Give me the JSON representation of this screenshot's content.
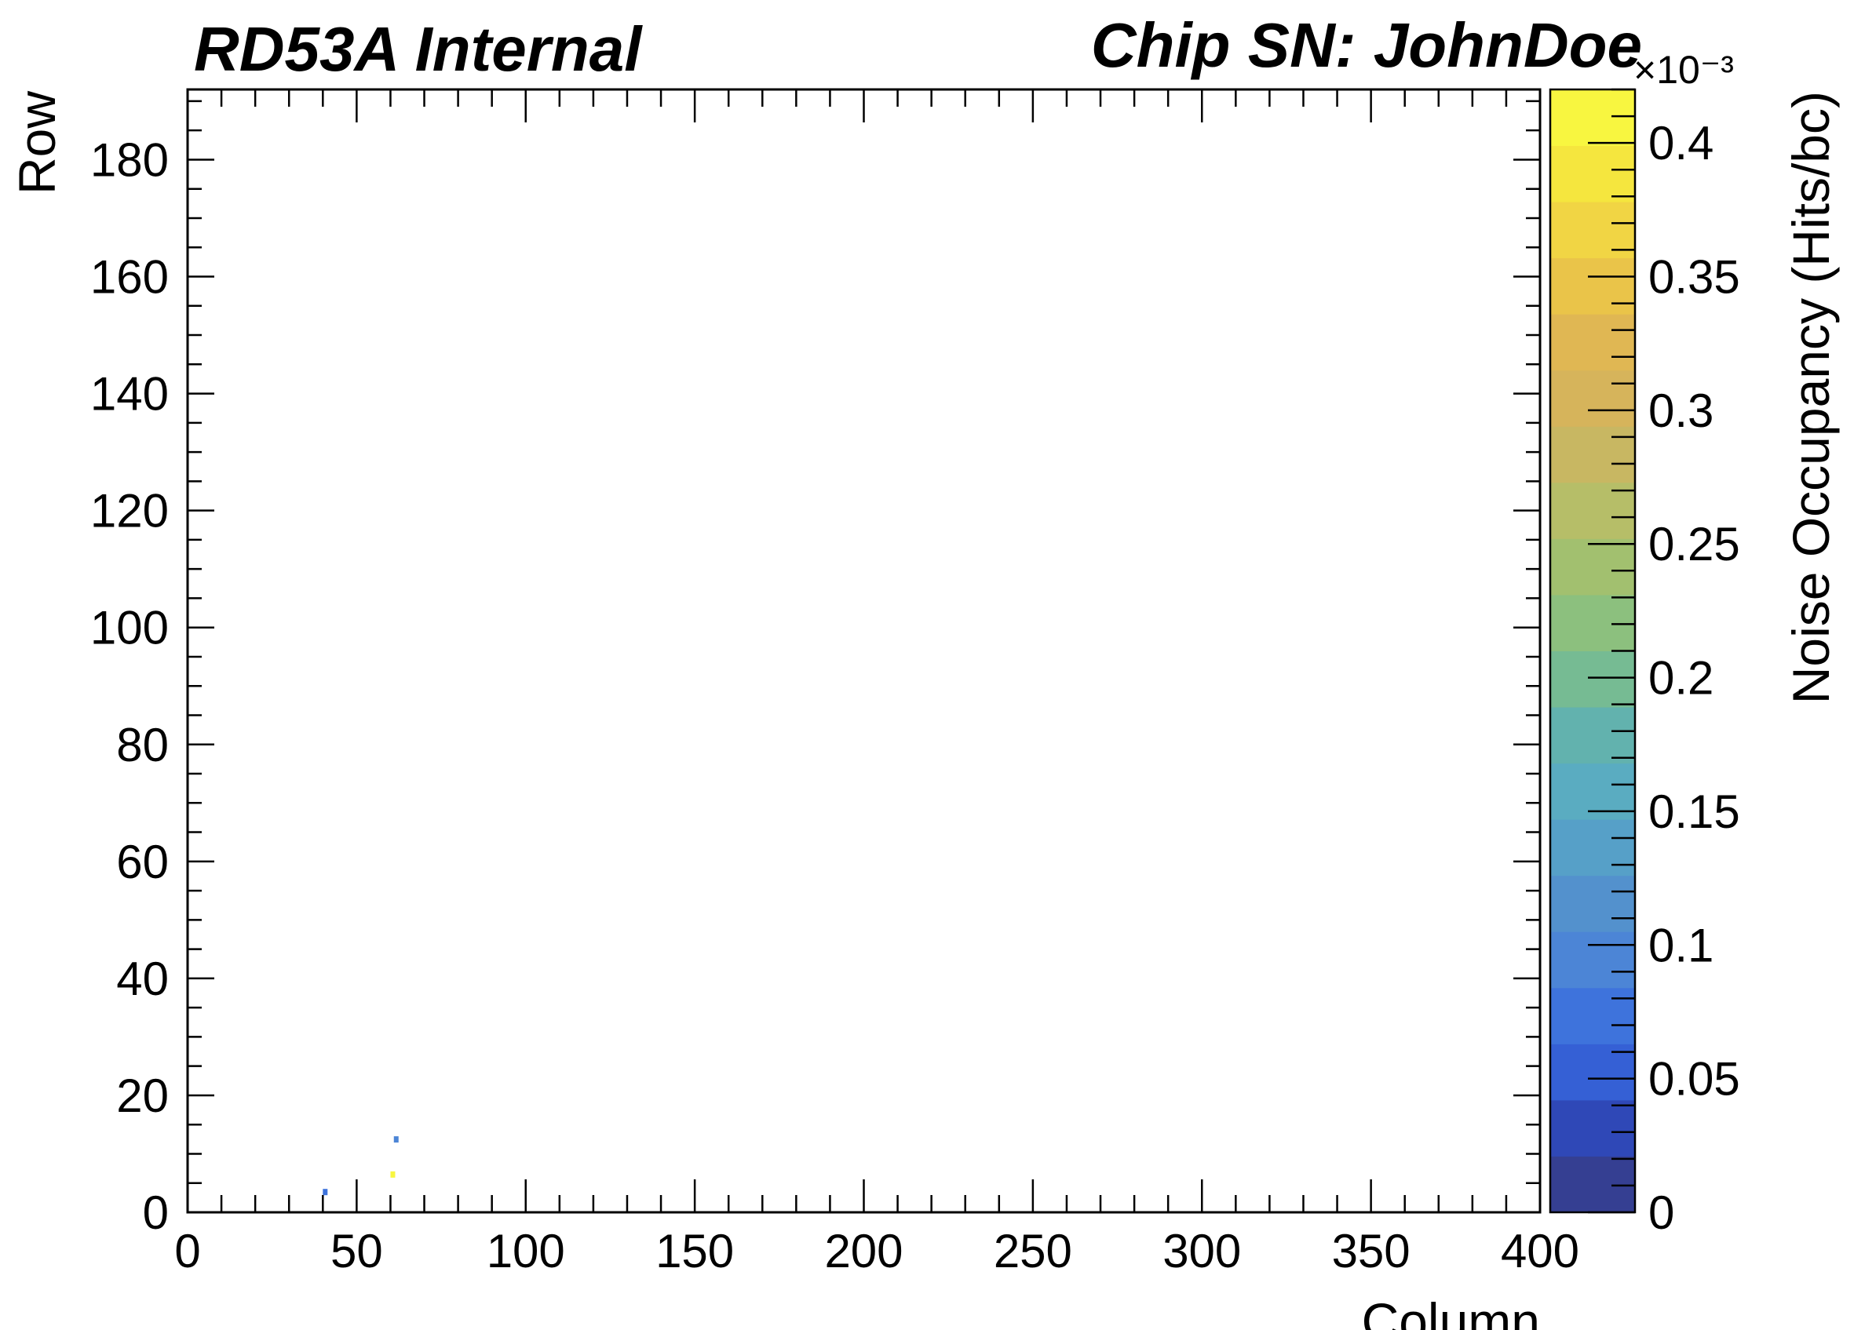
{
  "header": {
    "left_label": "RD53A Internal",
    "right_label": "Chip SN: JohnDoe"
  },
  "chart_data": {
    "type": "heatmap",
    "title": "",
    "xlabel": "Column",
    "ylabel": "Row",
    "zlabel": "Noise Occupancy (Hits/bc)",
    "xlim": [
      0,
      400
    ],
    "ylim": [
      0,
      192
    ],
    "zlim": [
      0,
      0.42
    ],
    "z_exponent_label": "×10⁻³",
    "x_ticks": [
      0,
      50,
      100,
      150,
      200,
      250,
      300,
      350,
      400
    ],
    "x_tick_labels": [
      "0",
      "50",
      "100",
      "150",
      "200",
      "250",
      "300",
      "350",
      "400"
    ],
    "x_minor_step": 10,
    "y_ticks": [
      0,
      20,
      40,
      60,
      80,
      100,
      120,
      140,
      160,
      180
    ],
    "y_tick_labels": [
      "0",
      "20",
      "40",
      "60",
      "80",
      "100",
      "120",
      "140",
      "160",
      "180"
    ],
    "y_minor_step": 5,
    "z_ticks": [
      0,
      0.05,
      0.1,
      0.15,
      0.2,
      0.25,
      0.3,
      0.35,
      0.4
    ],
    "z_tick_labels": [
      "0",
      "0.05",
      "0.1",
      "0.15",
      "0.2",
      "0.25",
      "0.3",
      "0.35",
      "0.4"
    ],
    "z_minor_step": 0.01,
    "grid": false,
    "cells": [
      {
        "column": 40,
        "row": 3,
        "value": 0.07
      },
      {
        "column": 61,
        "row": 12,
        "value": 0.1
      },
      {
        "column": 60,
        "row": 6,
        "value": 0.42
      }
    ],
    "colorbar_colors": [
      "#353f92",
      "#2f48b7",
      "#3560d5",
      "#3e73dc",
      "#4c85d6",
      "#5391cd",
      "#56a0c8",
      "#5aacc1",
      "#62b2ae",
      "#76bb93",
      "#8cc07e",
      "#a2c06f",
      "#b6be68",
      "#c8b762",
      "#d6b45b",
      "#e0b753",
      "#eac449",
      "#f1d544",
      "#f5e63e",
      "#f8f640"
    ]
  }
}
